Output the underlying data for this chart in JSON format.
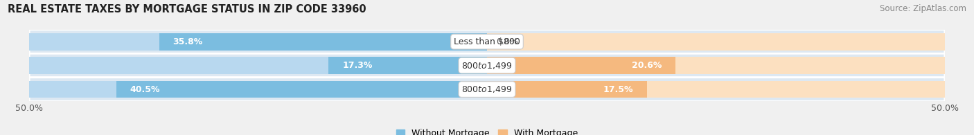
{
  "title": "REAL ESTATE TAXES BY MORTGAGE STATUS IN ZIP CODE 33960",
  "source": "Source: ZipAtlas.com",
  "categories": [
    "Less than $800",
    "$800 to $1,499",
    "$800 to $1,499"
  ],
  "without_mortgage": [
    35.8,
    17.3,
    40.5
  ],
  "with_mortgage": [
    0.0,
    20.6,
    17.5
  ],
  "color_without": "#7BBDE0",
  "color_without_light": "#B8D8EF",
  "color_with": "#F5B97F",
  "color_with_light": "#FCE0C0",
  "xlim": [
    -50,
    50
  ],
  "xticklabels": [
    "50.0%",
    "50.0%"
  ],
  "legend_labels": [
    "Without Mortgage",
    "With Mortgage"
  ],
  "bar_height": 0.72,
  "bg_row_colors": [
    "#E8F0F7",
    "#E8F0F7",
    "#E8F0F7"
  ],
  "bg_label": "#FFFFFF",
  "title_fontsize": 10.5,
  "source_fontsize": 8.5,
  "label_fontsize": 9,
  "pct_fontsize": 9,
  "tick_fontsize": 9
}
